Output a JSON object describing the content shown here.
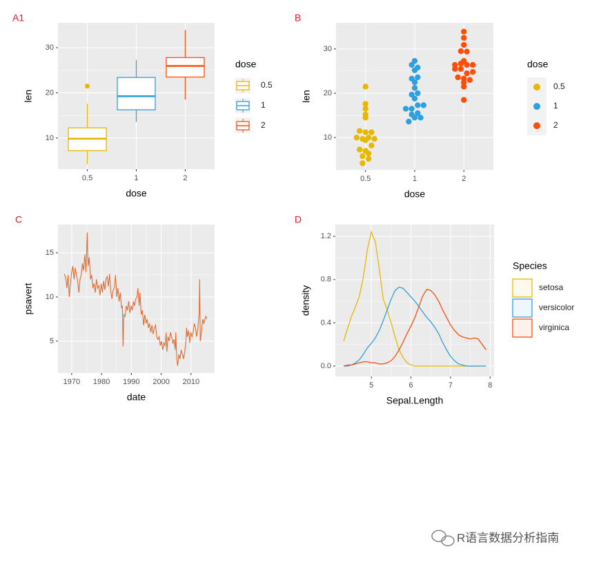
{
  "chart_data": [
    {
      "tag": "A1",
      "type": "box",
      "categories": [
        "0.5",
        "1",
        "2"
      ],
      "colors": [
        "#E7B800",
        "#2E9FDF",
        "#FC4E07"
      ],
      "boxes": [
        {
          "whisker_low": 4.2,
          "q1": 7.2,
          "median": 9.85,
          "q3": 12.25,
          "whisker_high": 17.6,
          "outliers": [
            21.5
          ]
        },
        {
          "whisker_low": 13.6,
          "q1": 16.25,
          "median": 19.25,
          "q3": 23.4,
          "whisker_high": 27.3,
          "outliers": []
        },
        {
          "whisker_low": 18.5,
          "q1": 23.5,
          "median": 25.95,
          "q3": 27.8,
          "whisker_high": 33.9,
          "outliers": []
        }
      ],
      "x_label": "dose",
      "y_label": "len",
      "ylim": [
        3.1,
        35.5
      ],
      "yticks": [
        10,
        20,
        30
      ],
      "grid": true,
      "legend": {
        "title": "dose"
      }
    },
    {
      "tag": "B",
      "type": "dotplot",
      "categories": [
        "0.5",
        "1",
        "2"
      ],
      "colors": [
        "#E7B800",
        "#2E9FDF",
        "#FC4E07"
      ],
      "values": [
        [
          4.2,
          11.5,
          7.3,
          5.8,
          6.4,
          10,
          11.2,
          11.2,
          5.2,
          7,
          15.2,
          21.5,
          17.6,
          9.7,
          14.5,
          10,
          8.2,
          9.4,
          16.5,
          9.7
        ],
        [
          16.5,
          16.5,
          15.2,
          17.3,
          22.5,
          17.3,
          13.6,
          14.5,
          18.8,
          15.5,
          19.7,
          23.3,
          23.6,
          26.4,
          20,
          25.2,
          25.8,
          21.2,
          14.5,
          27.3
        ],
        [
          23.6,
          18.5,
          33.9,
          25.5,
          26.4,
          32.5,
          26.7,
          21.5,
          23.3,
          29.5,
          25.5,
          26.4,
          22.4,
          24.5,
          24.8,
          30.9,
          26.4,
          27.3,
          29.4,
          23
        ]
      ],
      "x_label": "dose",
      "y_label": "len",
      "ylim": [
        2.7,
        35.9
      ],
      "yticks": [
        10,
        20,
        30
      ],
      "grid": true,
      "legend": {
        "title": "dose"
      }
    },
    {
      "tag": "C",
      "type": "line",
      "color": "#E4692E",
      "x": [
        1967.5,
        1968,
        1968.4,
        1968.8,
        1969.2,
        1969.6,
        1970,
        1970.4,
        1970.8,
        1971.2,
        1971.6,
        1972,
        1972.4,
        1972.8,
        1973.2,
        1973.6,
        1974,
        1974.4,
        1974.8,
        1975.2,
        1975.5,
        1975.9,
        1976.3,
        1976.7,
        1977.1,
        1977.5,
        1977.9,
        1978.3,
        1978.7,
        1979.1,
        1979.5,
        1979.9,
        1980.3,
        1980.7,
        1981.1,
        1981.5,
        1981.9,
        1982.3,
        1982.7,
        1983.1,
        1983.5,
        1983.9,
        1984.3,
        1984.7,
        1985.1,
        1985.5,
        1985.9,
        1986.3,
        1986.7,
        1987.0,
        1987.2,
        1987.5,
        1987.9,
        1988.3,
        1988.7,
        1989.1,
        1989.5,
        1989.9,
        1990.3,
        1990.7,
        1991.1,
        1991.5,
        1991.9,
        1992.2,
        1992.6,
        1992.9,
        1993.3,
        1993.7,
        1994.1,
        1994.5,
        1994.9,
        1995.3,
        1995.7,
        1996.1,
        1996.5,
        1996.9,
        1997.3,
        1997.7,
        1998.1,
        1998.5,
        1998.9,
        1999.3,
        1999.7,
        2000.1,
        2000.5,
        2000.9,
        2001.3,
        2001.7,
        2001.9,
        2002.3,
        2002.7,
        2003.1,
        2003.5,
        2003.9,
        2004.3,
        2004.7,
        2004.9,
        2005.2,
        2005.5,
        2005.9,
        2006.3,
        2006.7,
        2007.1,
        2007.5,
        2007.9,
        2008.3,
        2008.5,
        2008.8,
        2009.2,
        2009.6,
        2009.9,
        2010.3,
        2010.7,
        2011.1,
        2011.5,
        2011.9,
        2012.3,
        2012.7,
        2012.9,
        2013.1,
        2013.5,
        2013.9,
        2014.3,
        2014.7,
        2015.0,
        2015.3
      ],
      "values": [
        12.6,
        12.2,
        11.0,
        12.5,
        10.0,
        11.5,
        12.8,
        13.5,
        12.0,
        13.3,
        12.5,
        11.8,
        10.5,
        12.0,
        12.5,
        13.8,
        13.0,
        14.8,
        12.8,
        17.3,
        13.5,
        14.5,
        12.0,
        12.5,
        11.0,
        11.5,
        10.5,
        12.0,
        11.0,
        11.3,
        10.2,
        11.5,
        10.5,
        11.8,
        10.8,
        12.0,
        12.3,
        11.2,
        12.6,
        10.6,
        9.8,
        10.8,
        11.0,
        12.5,
        10.0,
        11.0,
        9.5,
        10.5,
        8.8,
        9.0,
        4.4,
        8.0,
        7.8,
        9.0,
        8.5,
        9.5,
        8.2,
        9.0,
        8.5,
        9.5,
        9.0,
        9.8,
        10.0,
        11.0,
        9.0,
        10.5,
        8.0,
        8.5,
        6.8,
        8.0,
        7.0,
        7.5,
        6.5,
        7.0,
        6.0,
        6.8,
        5.8,
        6.5,
        6.8,
        5.5,
        5.2,
        5.5,
        4.5,
        5.0,
        4.0,
        4.8,
        4.5,
        6.0,
        3.8,
        5.5,
        5.0,
        6.0,
        5.5,
        4.8,
        5.2,
        4.0,
        6.0,
        3.0,
        2.2,
        3.5,
        3.0,
        4.0,
        3.5,
        3.0,
        3.8,
        5.0,
        6.5,
        5.5,
        6.2,
        4.8,
        6.0,
        5.5,
        6.0,
        7.0,
        6.5,
        5.5,
        6.5,
        8.0,
        12.0,
        5.0,
        6.0,
        7.5,
        7.0,
        7.5,
        7.8,
        7.5
      ],
      "x_label": "date",
      "y_label": "psavert",
      "xlim": [
        1965.4,
        2017.9
      ],
      "xticks": [
        1970,
        1980,
        1990,
        2000,
        2010
      ],
      "ylim": [
        1.4,
        18.2
      ],
      "yticks": [
        5,
        10,
        15
      ],
      "grid": true
    },
    {
      "tag": "D",
      "type": "density",
      "x": [
        4.3,
        4.4,
        4.5,
        4.6,
        4.7,
        4.8,
        4.9,
        5.0,
        5.1,
        5.2,
        5.3,
        5.4,
        5.5,
        5.6,
        5.7,
        5.8,
        5.9,
        6.0,
        6.1,
        6.2,
        6.3,
        6.4,
        6.5,
        6.6,
        6.7,
        6.8,
        6.9,
        7.0,
        7.1,
        7.2,
        7.3,
        7.4,
        7.5,
        7.6,
        7.7,
        7.8,
        7.9
      ],
      "series": [
        {
          "name": "setosa",
          "color": "#E7B800",
          "values": [
            0.23,
            0.35,
            0.46,
            0.55,
            0.65,
            0.83,
            1.08,
            1.24,
            1.15,
            0.9,
            0.62,
            0.52,
            0.4,
            0.27,
            0.15,
            0.08,
            0.03,
            0.01,
            0,
            0,
            0,
            0,
            0,
            0,
            0,
            0,
            0,
            0,
            0,
            0,
            0,
            0,
            0,
            0,
            0,
            0,
            0
          ]
        },
        {
          "name": "versicolor",
          "color": "#2E9FDF",
          "values": [
            0,
            0,
            0.01,
            0.03,
            0.06,
            0.11,
            0.17,
            0.21,
            0.26,
            0.33,
            0.42,
            0.52,
            0.62,
            0.7,
            0.73,
            0.72,
            0.68,
            0.64,
            0.6,
            0.55,
            0.5,
            0.45,
            0.41,
            0.36,
            0.3,
            0.22,
            0.15,
            0.09,
            0.05,
            0.02,
            0.01,
            0,
            0,
            0,
            0,
            0,
            0
          ]
        },
        {
          "name": "virginica",
          "color": "#FC4E07",
          "values": [
            0,
            0.01,
            0.01,
            0.02,
            0.03,
            0.04,
            0.04,
            0.03,
            0.03,
            0.02,
            0.02,
            0.03,
            0.05,
            0.09,
            0.15,
            0.22,
            0.3,
            0.37,
            0.45,
            0.55,
            0.65,
            0.71,
            0.7,
            0.66,
            0.6,
            0.52,
            0.45,
            0.38,
            0.33,
            0.29,
            0.27,
            0.26,
            0.25,
            0.26,
            0.25,
            0.2,
            0.15
          ]
        }
      ],
      "x_label": "Sepal.Length",
      "y_label": "density",
      "xlim": [
        4.09,
        8.1
      ],
      "xticks": [
        5,
        6,
        7,
        8
      ],
      "ylim": [
        -0.096,
        1.31
      ],
      "yticks": [
        {
          "value": 0,
          "label": "0.0"
        },
        {
          "value": 0.4,
          "label": "0.4"
        },
        {
          "value": 0.8,
          "label": "0.8"
        },
        {
          "value": 1.2,
          "label": "1.2"
        }
      ],
      "grid": true,
      "legend": {
        "title": "Species"
      }
    }
  ],
  "watermark": "R语言数据分析指南"
}
